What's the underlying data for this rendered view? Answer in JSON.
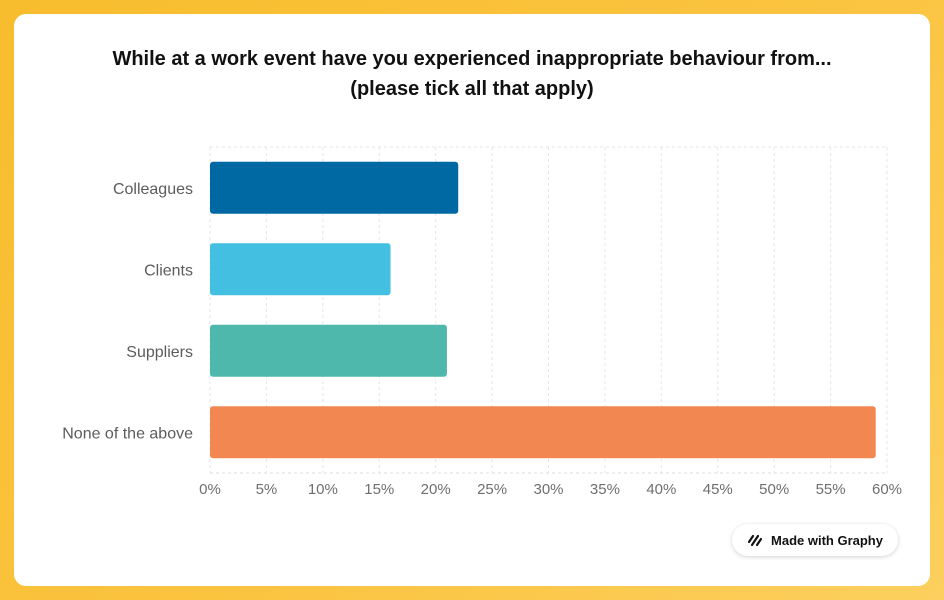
{
  "chart_data": {
    "type": "bar",
    "orientation": "horizontal",
    "title_lines": [
      "While at a work event have you experienced inappropriate behaviour from...",
      "(please tick all that apply)"
    ],
    "categories": [
      "Colleagues",
      "Clients",
      "Suppliers",
      "None of the above"
    ],
    "values": [
      22,
      16,
      21,
      59
    ],
    "colors": [
      "#0068a3",
      "#42bfe1",
      "#4fb8ad",
      "#f28752"
    ],
    "xlim": [
      0,
      60
    ],
    "xticks": [
      0,
      5,
      10,
      15,
      20,
      25,
      30,
      35,
      40,
      45,
      50,
      55,
      60
    ],
    "tick_suffix": "%",
    "grid": true
  },
  "branding": {
    "label": "Made with Graphy",
    "icon": "graphy-logo-icon"
  }
}
